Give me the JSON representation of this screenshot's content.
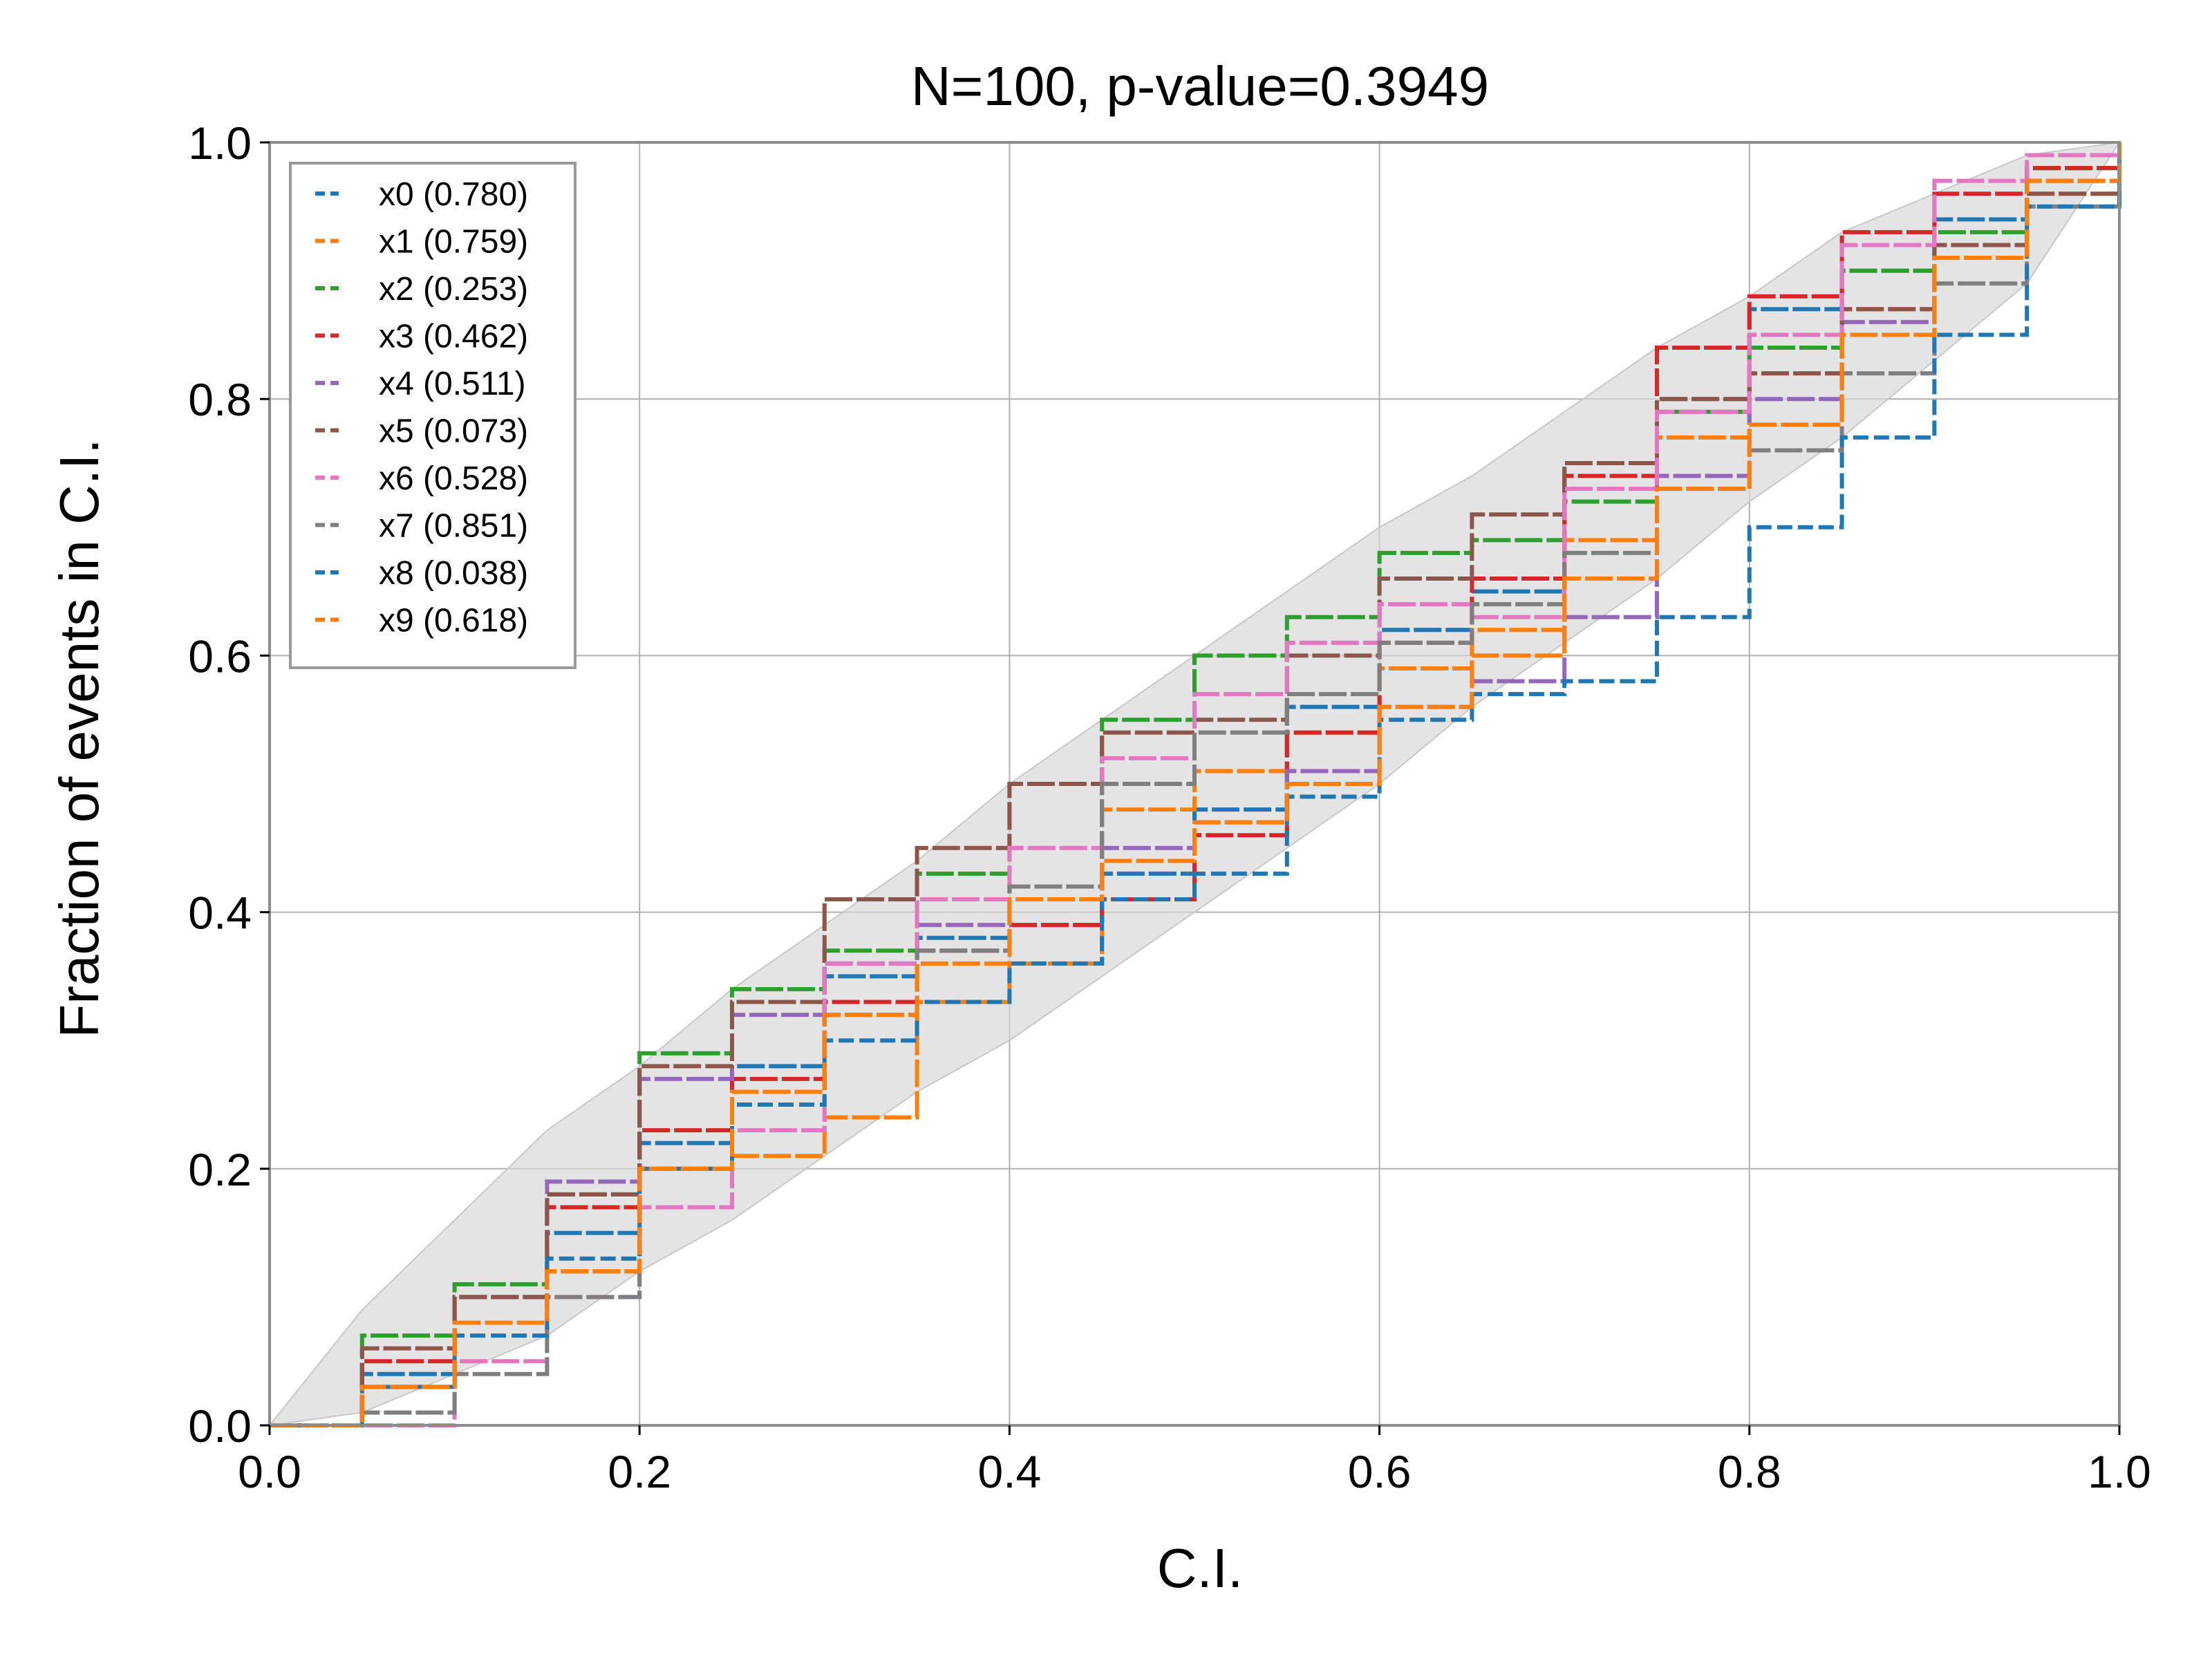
{
  "chart_data": {
    "type": "line",
    "title": "N=100, p-value=0.3949",
    "xlabel": "C.I.",
    "ylabel": "Fraction of events in C.I.",
    "xlim": [
      0.0,
      1.0
    ],
    "ylim": [
      0.0,
      1.0
    ],
    "xticks": [
      "0.0",
      "0.2",
      "0.4",
      "0.6",
      "0.8",
      "1.0"
    ],
    "yticks": [
      "0.0",
      "0.2",
      "0.4",
      "0.6",
      "0.8",
      "1.0"
    ],
    "grid": true,
    "legend_position": "top-left",
    "band": {
      "color": "#d9d9d9",
      "x": [
        0,
        0.05,
        0.1,
        0.15,
        0.2,
        0.25,
        0.3,
        0.35,
        0.4,
        0.45,
        0.5,
        0.55,
        0.6,
        0.65,
        0.7,
        0.75,
        0.8,
        0.85,
        0.9,
        0.95,
        1.0
      ],
      "lower": [
        0,
        0.01,
        0.04,
        0.07,
        0.12,
        0.16,
        0.21,
        0.26,
        0.3,
        0.35,
        0.4,
        0.45,
        0.5,
        0.56,
        0.61,
        0.66,
        0.72,
        0.77,
        0.83,
        0.89,
        1.0
      ],
      "upper": [
        0,
        0.09,
        0.16,
        0.23,
        0.28,
        0.34,
        0.39,
        0.44,
        0.5,
        0.55,
        0.6,
        0.65,
        0.7,
        0.74,
        0.79,
        0.84,
        0.88,
        0.93,
        0.96,
        0.99,
        1.0
      ]
    },
    "series": [
      {
        "name": "x0 (0.780)",
        "color": "#1f77b4",
        "dashed": true,
        "x": [
          0,
          0.05,
          0.1,
          0.15,
          0.2,
          0.25,
          0.3,
          0.35,
          0.4,
          0.45,
          0.5,
          0.55,
          0.6,
          0.65,
          0.7,
          0.75,
          0.8,
          0.85,
          0.9,
          0.95,
          1.0
        ],
        "y": [
          0,
          0.04,
          0.1,
          0.15,
          0.22,
          0.28,
          0.35,
          0.38,
          0.39,
          0.43,
          0.48,
          0.56,
          0.62,
          0.65,
          0.75,
          0.8,
          0.87,
          0.9,
          0.94,
          0.98,
          1.0
        ]
      },
      {
        "name": "x1 (0.759)",
        "color": "#ff7f0e",
        "dashed": true,
        "x": [
          0,
          0.05,
          0.1,
          0.15,
          0.2,
          0.25,
          0.3,
          0.35,
          0.4,
          0.45,
          0.5,
          0.55,
          0.6,
          0.65,
          0.7,
          0.75,
          0.8,
          0.85,
          0.9,
          0.95,
          1.0
        ],
        "y": [
          0,
          0.03,
          0.08,
          0.12,
          0.17,
          0.21,
          0.24,
          0.33,
          0.36,
          0.48,
          0.51,
          0.54,
          0.59,
          0.62,
          0.69,
          0.77,
          0.82,
          0.87,
          0.91,
          0.96,
          1.0
        ]
      },
      {
        "name": "x2 (0.253)",
        "color": "#2ca02c",
        "dashed": true,
        "x": [
          0,
          0.05,
          0.1,
          0.15,
          0.2,
          0.25,
          0.3,
          0.35,
          0.4,
          0.45,
          0.5,
          0.55,
          0.6,
          0.65,
          0.7,
          0.75,
          0.8,
          0.85,
          0.9,
          0.95,
          1.0
        ],
        "y": [
          0,
          0.07,
          0.11,
          0.18,
          0.29,
          0.34,
          0.37,
          0.43,
          0.5,
          0.55,
          0.6,
          0.63,
          0.68,
          0.69,
          0.72,
          0.79,
          0.84,
          0.9,
          0.93,
          0.98,
          1.0
        ]
      },
      {
        "name": "x3 (0.462)",
        "color": "#d62728",
        "dashed": true,
        "x": [
          0,
          0.05,
          0.1,
          0.15,
          0.2,
          0.25,
          0.3,
          0.35,
          0.4,
          0.45,
          0.5,
          0.55,
          0.6,
          0.65,
          0.7,
          0.75,
          0.8,
          0.85,
          0.9,
          0.95,
          1.0
        ],
        "y": [
          0,
          0.05,
          0.1,
          0.17,
          0.23,
          0.27,
          0.33,
          0.37,
          0.39,
          0.41,
          0.46,
          0.54,
          0.61,
          0.66,
          0.74,
          0.84,
          0.88,
          0.93,
          0.96,
          0.98,
          1.0
        ]
      },
      {
        "name": "x4 (0.511)",
        "color": "#9467bd",
        "dashed": true,
        "x": [
          0,
          0.05,
          0.1,
          0.15,
          0.2,
          0.25,
          0.3,
          0.35,
          0.4,
          0.45,
          0.5,
          0.55,
          0.6,
          0.65,
          0.7,
          0.75,
          0.8,
          0.85,
          0.9,
          0.95,
          1.0
        ],
        "y": [
          0,
          0.03,
          0.08,
          0.19,
          0.27,
          0.32,
          0.36,
          0.39,
          0.42,
          0.45,
          0.47,
          0.51,
          0.56,
          0.58,
          0.63,
          0.74,
          0.8,
          0.86,
          0.92,
          0.97,
          1.0
        ]
      },
      {
        "name": "x5 (0.073)",
        "color": "#8c564b",
        "dashed": true,
        "x": [
          0,
          0.05,
          0.1,
          0.15,
          0.2,
          0.25,
          0.3,
          0.35,
          0.4,
          0.45,
          0.5,
          0.55,
          0.6,
          0.65,
          0.7,
          0.75,
          0.8,
          0.85,
          0.9,
          0.95,
          1.0
        ],
        "y": [
          0,
          0.06,
          0.1,
          0.18,
          0.28,
          0.33,
          0.41,
          0.45,
          0.5,
          0.54,
          0.55,
          0.6,
          0.66,
          0.71,
          0.75,
          0.8,
          0.82,
          0.87,
          0.92,
          0.96,
          1.0
        ]
      },
      {
        "name": "x6 (0.528)",
        "color": "#e377c2",
        "dashed": true,
        "x": [
          0,
          0.05,
          0.1,
          0.15,
          0.2,
          0.25,
          0.3,
          0.35,
          0.4,
          0.45,
          0.5,
          0.55,
          0.6,
          0.65,
          0.7,
          0.75,
          0.8,
          0.85,
          0.9,
          0.95,
          1.0
        ],
        "y": [
          0,
          0.0,
          0.05,
          0.1,
          0.17,
          0.23,
          0.36,
          0.41,
          0.45,
          0.52,
          0.57,
          0.61,
          0.64,
          0.63,
          0.73,
          0.79,
          0.85,
          0.92,
          0.97,
          0.99,
          1.0
        ]
      },
      {
        "name": "x7 (0.851)",
        "color": "#7f7f7f",
        "dashed": true,
        "x": [
          0,
          0.05,
          0.1,
          0.15,
          0.2,
          0.25,
          0.3,
          0.35,
          0.4,
          0.45,
          0.5,
          0.55,
          0.6,
          0.65,
          0.7,
          0.75,
          0.8,
          0.85,
          0.9,
          0.95,
          1.0
        ],
        "y": [
          0,
          0.01,
          0.04,
          0.1,
          0.2,
          0.26,
          0.32,
          0.37,
          0.42,
          0.5,
          0.54,
          0.57,
          0.61,
          0.64,
          0.68,
          0.73,
          0.76,
          0.82,
          0.89,
          0.95,
          1.0
        ]
      },
      {
        "name": "x8 (0.038)",
        "color": "#1f77b4",
        "dashed": true,
        "x": [
          0,
          0.05,
          0.1,
          0.15,
          0.2,
          0.25,
          0.3,
          0.35,
          0.4,
          0.45,
          0.5,
          0.55,
          0.6,
          0.65,
          0.7,
          0.75,
          0.8,
          0.85,
          0.9,
          0.95,
          1.0
        ],
        "y": [
          0,
          0.03,
          0.07,
          0.13,
          0.2,
          0.25,
          0.3,
          0.33,
          0.36,
          0.41,
          0.43,
          0.49,
          0.55,
          0.57,
          0.58,
          0.63,
          0.7,
          0.77,
          0.85,
          0.95,
          1.0
        ]
      },
      {
        "name": "x9 (0.618)",
        "color": "#ff7f0e",
        "dashed": true,
        "x": [
          0,
          0.05,
          0.1,
          0.15,
          0.2,
          0.25,
          0.3,
          0.35,
          0.4,
          0.45,
          0.5,
          0.55,
          0.6,
          0.65,
          0.7,
          0.75,
          0.8,
          0.85,
          0.9,
          0.95,
          1.0
        ],
        "y": [
          0,
          0.03,
          0.08,
          0.12,
          0.2,
          0.26,
          0.32,
          0.36,
          0.41,
          0.44,
          0.47,
          0.5,
          0.56,
          0.6,
          0.66,
          0.73,
          0.78,
          0.85,
          0.91,
          0.97,
          1.0
        ]
      }
    ]
  }
}
